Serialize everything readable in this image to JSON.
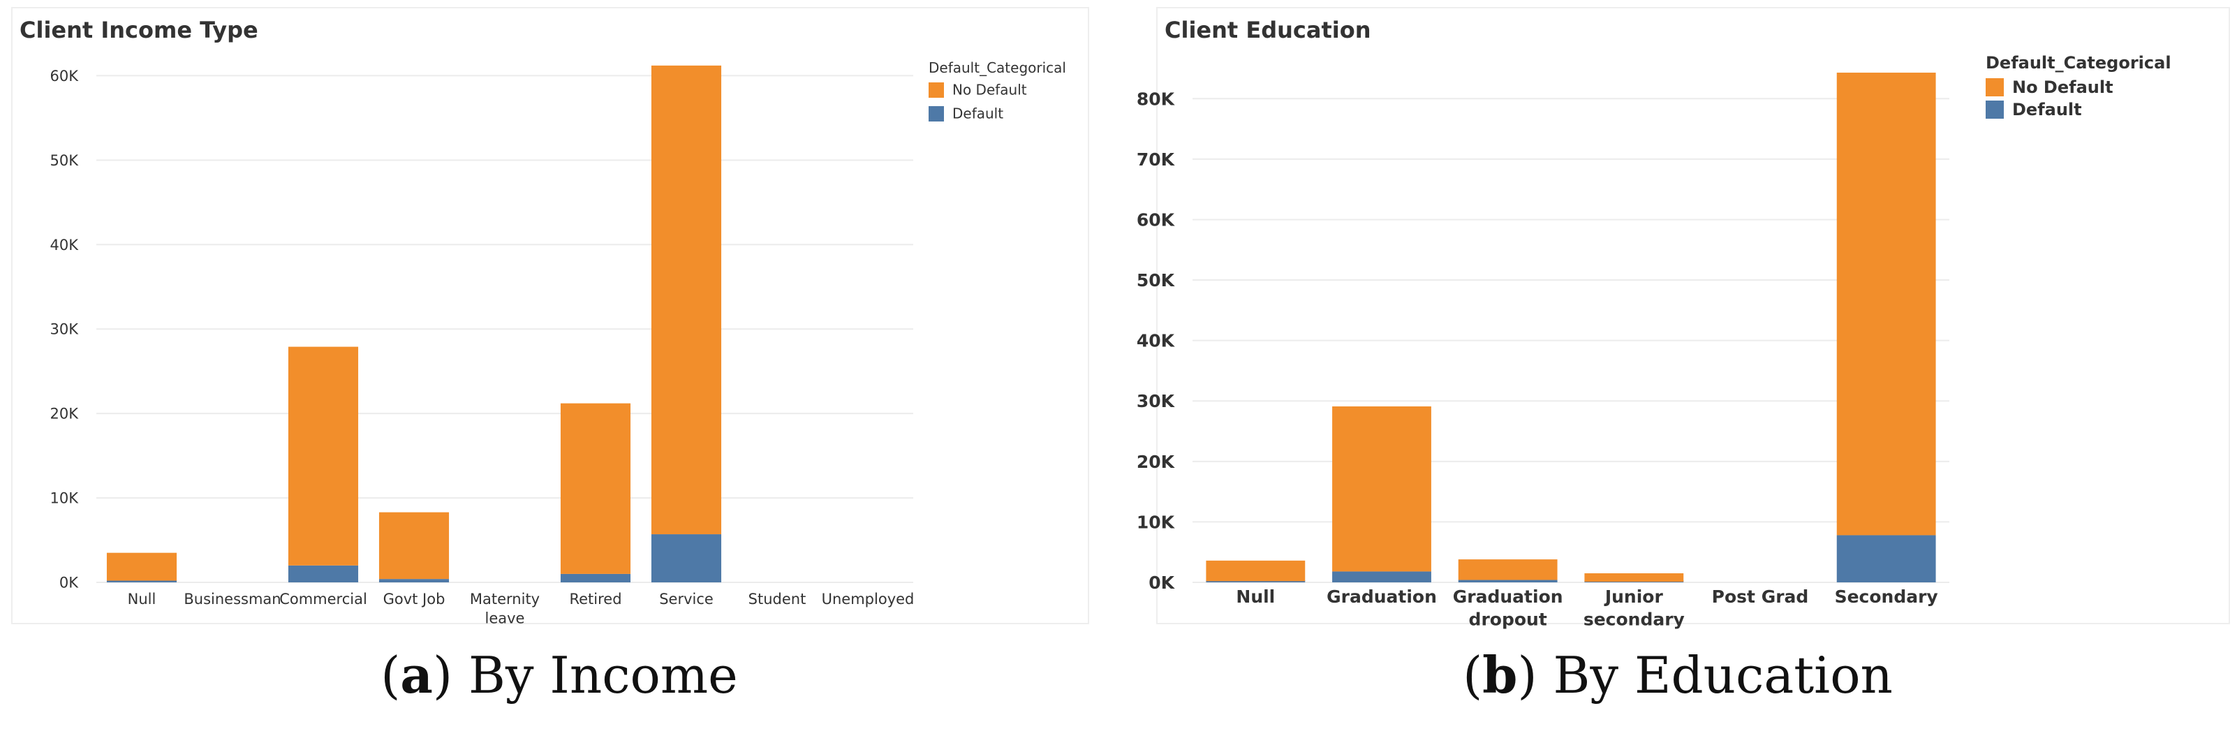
{
  "chart_data": [
    {
      "type": "bar",
      "stacked": true,
      "title": "Client Income Type",
      "xlabel": "",
      "ylabel": "",
      "categories": [
        "Null",
        "Businessman",
        "Commercial",
        "Govt Job",
        "Maternity leave",
        "Retired",
        "Service",
        "Student",
        "Unemployed"
      ],
      "series": [
        {
          "name": "Default",
          "color": "#4e79a7",
          "values": [
            200,
            0,
            2000,
            400,
            0,
            1000,
            5700,
            0,
            0
          ]
        },
        {
          "name": "No Default",
          "color": "#f28e2b",
          "values": [
            3300,
            0,
            25900,
            7900,
            0,
            20200,
            55500,
            0,
            0
          ]
        }
      ],
      "ylim": [
        0,
        64000
      ],
      "yticks": [
        0,
        10000,
        20000,
        30000,
        40000,
        50000,
        60000
      ],
      "ytick_labels": [
        "0K",
        "10K",
        "20K",
        "30K",
        "40K",
        "50K",
        "60K"
      ],
      "legend": {
        "title": "Default_Categorical",
        "placement": "top-right",
        "entries": [
          "No Default",
          "Default"
        ]
      },
      "grid": true,
      "caption_label": "a",
      "caption_text": "By Income"
    },
    {
      "type": "bar",
      "stacked": true,
      "title": "Client Education",
      "xlabel": "",
      "ylabel": "",
      "categories": [
        "Null",
        "Graduation",
        "Graduation dropout",
        "Junior secondary",
        "Post Grad",
        "Secondary"
      ],
      "series": [
        {
          "name": "Default",
          "color": "#4e79a7",
          "values": [
            200,
            1800,
            400,
            100,
            0,
            7800
          ]
        },
        {
          "name": "No Default",
          "color": "#f28e2b",
          "values": [
            3400,
            27300,
            3400,
            1400,
            0,
            76500
          ]
        }
      ],
      "ylim": [
        0,
        88000
      ],
      "yticks": [
        0,
        10000,
        20000,
        30000,
        40000,
        50000,
        60000,
        70000,
        80000
      ],
      "ytick_labels": [
        "0K",
        "10K",
        "20K",
        "30K",
        "40K",
        "50K",
        "60K",
        "70K",
        "80K"
      ],
      "legend": {
        "title": "Default_Categorical",
        "placement": "top-right",
        "entries": [
          "No Default",
          "Default"
        ]
      },
      "grid": true,
      "caption_label": "b",
      "caption_text": "By Education"
    }
  ]
}
